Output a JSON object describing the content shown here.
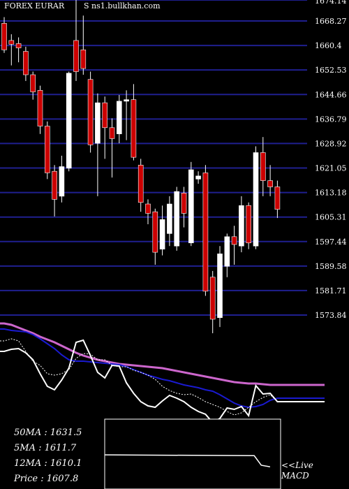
{
  "header": {
    "symbol_label": "FOREX  EURAR",
    "source_label": "S ns1.bullkhan.com"
  },
  "indicators": {
    "ma50": "50MA : 1631.5",
    "ma5": "5MA : 1611.7",
    "ma12": "12MA : 1610.1",
    "price": "Price   : 1607.8"
  },
  "macd_label_live": "<<Live",
  "macd_label_name": "MACD",
  "colors": {
    "background": "#000000",
    "grid": "#1f1f8f",
    "up_candle": "#ffffff",
    "down_candle": "#cc0000",
    "ma_long": "#cc66cc",
    "ma_mid": "#1a1ad0",
    "line_main": "#ffffff"
  },
  "chart_data": {
    "type": "candlestick",
    "price_axis": {
      "ticks": [
        "1668.27",
        "1660.4",
        "1652.53",
        "1644.66",
        "1636.79",
        "1628.92",
        "1621.05",
        "1613.18",
        "1605.31",
        "1597.44",
        "1589.58",
        "1581.71",
        "1573.84"
      ],
      "top_partial_label": "1674.14",
      "range": [
        1570.0,
        1675.0
      ]
    },
    "candles": [
      {
        "o": 1667.5,
        "h": 1669.5,
        "l": 1658.0,
        "c": 1659.0
      },
      {
        "o": 1662.0,
        "h": 1664.0,
        "l": 1654.0,
        "c": 1660.8
      },
      {
        "o": 1661.0,
        "h": 1663.0,
        "l": 1655.0,
        "c": 1659.6
      },
      {
        "o": 1658.5,
        "h": 1660.0,
        "l": 1649.0,
        "c": 1651.0
      },
      {
        "o": 1651.0,
        "h": 1652.0,
        "l": 1643.0,
        "c": 1645.5
      },
      {
        "o": 1646.0,
        "h": 1647.5,
        "l": 1632.0,
        "c": 1634.5
      },
      {
        "o": 1634.5,
        "h": 1636.0,
        "l": 1617.5,
        "c": 1619.5
      },
      {
        "o": 1620.0,
        "h": 1622.0,
        "l": 1605.5,
        "c": 1611.0
      },
      {
        "o": 1612.0,
        "h": 1625.0,
        "l": 1610.0,
        "c": 1621.5
      },
      {
        "o": 1621.0,
        "h": 1652.0,
        "l": 1620.0,
        "c": 1651.5
      },
      {
        "o": 1662.0,
        "h": 1675.0,
        "l": 1649.0,
        "c": 1652.0
      },
      {
        "o": 1659.0,
        "h": 1670.0,
        "l": 1651.0,
        "c": 1653.0
      },
      {
        "o": 1649.5,
        "h": 1652.0,
        "l": 1626.0,
        "c": 1628.5
      },
      {
        "o": 1629.0,
        "h": 1645.0,
        "l": 1612.0,
        "c": 1642.0
      },
      {
        "o": 1642.0,
        "h": 1644.0,
        "l": 1624.0,
        "c": 1634.0
      },
      {
        "o": 1634.0,
        "h": 1637.0,
        "l": 1618.0,
        "c": 1630.5
      },
      {
        "o": 1632.0,
        "h": 1644.5,
        "l": 1629.0,
        "c": 1642.5
      },
      {
        "o": 1642.5,
        "h": 1646.0,
        "l": 1630.0,
        "c": 1643.0
      },
      {
        "o": 1643.0,
        "h": 1648.0,
        "l": 1623.5,
        "c": 1624.5
      },
      {
        "o": 1622.0,
        "h": 1624.0,
        "l": 1607.0,
        "c": 1610.0
      },
      {
        "o": 1609.5,
        "h": 1611.0,
        "l": 1603.0,
        "c": 1606.5
      },
      {
        "o": 1607.0,
        "h": 1608.0,
        "l": 1590.0,
        "c": 1594.0
      },
      {
        "o": 1595.0,
        "h": 1609.0,
        "l": 1593.0,
        "c": 1604.5
      },
      {
        "o": 1600.0,
        "h": 1612.0,
        "l": 1596.0,
        "c": 1609.5
      },
      {
        "o": 1596.0,
        "h": 1615.0,
        "l": 1594.5,
        "c": 1613.5
      },
      {
        "o": 1613.0,
        "h": 1615.0,
        "l": 1602.0,
        "c": 1606.5
      },
      {
        "o": 1597.0,
        "h": 1623.0,
        "l": 1596.0,
        "c": 1620.5
      },
      {
        "o": 1617.5,
        "h": 1620.0,
        "l": 1616.0,
        "c": 1618.5
      },
      {
        "o": 1619.5,
        "h": 1622.0,
        "l": 1580.0,
        "c": 1581.5
      },
      {
        "o": 1586.0,
        "h": 1588.0,
        "l": 1568.0,
        "c": 1572.5
      },
      {
        "o": 1573.0,
        "h": 1596.0,
        "l": 1570.0,
        "c": 1593.5
      },
      {
        "o": 1589.5,
        "h": 1600.0,
        "l": 1586.0,
        "c": 1599.0
      },
      {
        "o": 1599.0,
        "h": 1602.5,
        "l": 1590.0,
        "c": 1596.5
      },
      {
        "o": 1596.0,
        "h": 1612.0,
        "l": 1594.0,
        "c": 1609.0
      },
      {
        "o": 1609.0,
        "h": 1610.0,
        "l": 1595.0,
        "c": 1597.0
      },
      {
        "o": 1596.0,
        "h": 1628.0,
        "l": 1595.0,
        "c": 1626.0
      },
      {
        "o": 1626.0,
        "h": 1631.0,
        "l": 1612.0,
        "c": 1617.0
      },
      {
        "o": 1617.0,
        "h": 1622.0,
        "l": 1612.0,
        "c": 1615.0
      },
      {
        "o": 1615.0,
        "h": 1617.0,
        "l": 1605.0,
        "c": 1607.8
      }
    ],
    "indicator_series": {
      "ma_long": [
        108,
        110,
        114,
        118,
        122,
        127,
        131,
        135,
        140,
        145,
        150,
        154,
        157,
        160,
        162,
        164,
        166,
        167,
        168,
        169,
        170,
        171,
        172,
        174,
        176,
        178,
        180,
        182,
        184,
        186,
        188,
        190,
        192,
        193,
        194,
        194,
        195,
        196,
        196
      ],
      "ma_mid": [
        116,
        118,
        119,
        120,
        124,
        130,
        137,
        144,
        153,
        160,
        162,
        162,
        163,
        164,
        165,
        166,
        167,
        170,
        174,
        178,
        182,
        185,
        188,
        190,
        193,
        196,
        198,
        200,
        203,
        205,
        210,
        216,
        222,
        226,
        228,
        227,
        224,
        218,
        215
      ],
      "line_dashed": [
        133,
        130,
        133,
        148,
        162,
        168,
        180,
        182,
        180,
        174,
        158,
        151,
        152,
        160,
        160,
        168,
        170,
        170,
        175,
        178,
        182,
        188,
        198,
        204,
        208,
        210,
        209,
        214,
        220,
        224,
        228,
        234,
        239,
        236,
        228,
        220,
        214,
        210,
        220
      ],
      "line_solid": [
        148,
        145,
        144,
        150,
        160,
        180,
        198,
        203,
        189,
        172,
        135,
        132,
        154,
        178,
        186,
        168,
        169,
        193,
        208,
        220,
        226,
        228,
        219,
        211,
        215,
        220,
        228,
        234,
        238,
        250,
        244,
        229,
        231,
        227,
        240,
        197,
        209,
        208,
        220
      ]
    },
    "macd_line": [
      {
        "x": 0,
        "y": 0.93
      },
      {
        "x": 0.85,
        "y": 0.95
      },
      {
        "x": 0.89,
        "y": 1.2
      },
      {
        "x": 0.94,
        "y": 1.24
      }
    ]
  }
}
